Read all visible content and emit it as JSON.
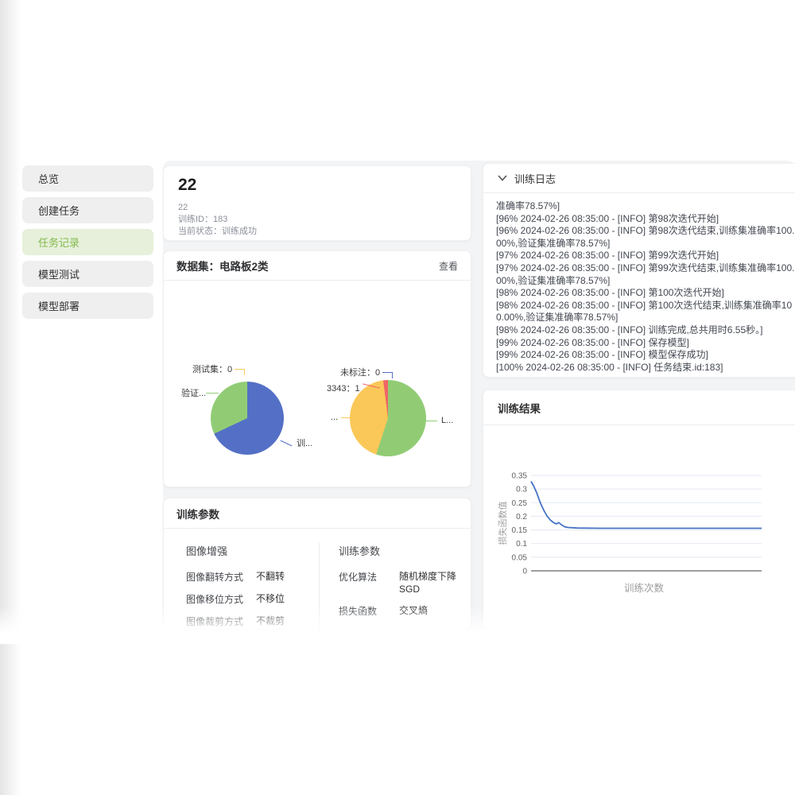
{
  "colors": {
    "accent_green": "#85b94e",
    "active_item_bg": "#e6f0da",
    "loss_line": "#4472c4",
    "pie_blue": "#5470c6",
    "pie_green": "#91cc75",
    "pie_yellow": "#fac858",
    "pie_red": "#ee6666"
  },
  "sidebar": {
    "items": [
      {
        "label": "总览",
        "active": false
      },
      {
        "label": "创建任务",
        "active": false
      },
      {
        "label": "任务记录",
        "active": true
      },
      {
        "label": "模型测试",
        "active": false
      },
      {
        "label": "模型部署",
        "active": false
      }
    ]
  },
  "task": {
    "title": "22",
    "name": "22",
    "train_id": "训练ID：183",
    "status": "当前状态：训练成功"
  },
  "dataset": {
    "title": "数据集：电路板2类",
    "view_label": "查看"
  },
  "chart_data": [
    {
      "type": "pie",
      "name": "dataset-split",
      "slices": [
        {
          "label": "训...",
          "value": 68,
          "color": "#5470c6"
        },
        {
          "label": "验证...",
          "value": 32,
          "color": "#91cc75"
        },
        {
          "label": "测试集：0",
          "value": 0,
          "color": "#fac858"
        }
      ]
    },
    {
      "type": "pie",
      "name": "label-distribution",
      "slices": [
        {
          "label": "L...",
          "value": 55,
          "color": "#91cc75"
        },
        {
          "label": "...",
          "value": 43,
          "color": "#fac858"
        },
        {
          "label": "3343：1",
          "value": 2,
          "color": "#ee6666"
        },
        {
          "label": "未标注：0",
          "value": 0,
          "color": "#5470c6"
        }
      ]
    },
    {
      "type": "line",
      "name": "loss-curve",
      "title": "",
      "xlabel": "训练次数",
      "ylabel": "损失函数值",
      "ylim": [
        0,
        0.35
      ],
      "ytick_step": 0.05,
      "grid": true,
      "line_color": "#4472c4",
      "points": [
        [
          0,
          0.328
        ],
        [
          0.012,
          0.31
        ],
        [
          0.025,
          0.285
        ],
        [
          0.04,
          0.25
        ],
        [
          0.055,
          0.222
        ],
        [
          0.07,
          0.2
        ],
        [
          0.085,
          0.185
        ],
        [
          0.1,
          0.176
        ],
        [
          0.11,
          0.172
        ],
        [
          0.12,
          0.177
        ],
        [
          0.13,
          0.17
        ],
        [
          0.145,
          0.162
        ],
        [
          0.16,
          0.159
        ],
        [
          0.18,
          0.158
        ],
        [
          0.2,
          0.157
        ],
        [
          0.3,
          0.156
        ],
        [
          0.4,
          0.156
        ],
        [
          0.6,
          0.156
        ],
        [
          0.8,
          0.156
        ],
        [
          1,
          0.156
        ]
      ]
    }
  ],
  "params": {
    "title": "训练参数",
    "groups": [
      {
        "title": "图像增强",
        "rows": [
          {
            "label": "图像翻转方式",
            "value": "不翻转"
          },
          {
            "label": "图像移位方式",
            "value": "不移位"
          },
          {
            "label": "图像裁剪方式",
            "value": "不裁剪"
          }
        ]
      },
      {
        "title": "训练参数",
        "rows": [
          {
            "label": "优化算法",
            "value": "随机梯度下降 SGD"
          },
          {
            "label": "损失函数",
            "value": "交叉熵"
          }
        ]
      }
    ]
  },
  "log": {
    "title": "训练日志",
    "lines": [
      "准确率78.57%]",
      "[96% 2024-02-26 08:35:00 - [INFO] 第98次迭代开始]",
      "[96% 2024-02-26 08:35:00 - [INFO] 第98次迭代结束,训练集准确率100.00%,验证集准确率78.57%]",
      "[97% 2024-02-26 08:35:00 - [INFO] 第99次迭代开始]",
      "[97% 2024-02-26 08:35:00 - [INFO] 第99次迭代结束,训练集准确率100.00%,验证集准确率78.57%]",
      "[98% 2024-02-26 08:35:00 - [INFO] 第100次迭代开始]",
      "[98% 2024-02-26 08:35:00 - [INFO] 第100次迭代结束,训练集准确率100.00%,验证集准确率78.57%]",
      "[98% 2024-02-26 08:35:00 - [INFO] 训练完成,总共用时6.55秒。]",
      "[99% 2024-02-26 08:35:00 - [INFO] 保存模型]",
      "[99% 2024-02-26 08:35:00 - [INFO] 模型保存成功]",
      "[100% 2024-02-26 08:35:00 - [INFO] 任务结束.id:183]"
    ]
  },
  "result": {
    "title": "训练结果"
  }
}
